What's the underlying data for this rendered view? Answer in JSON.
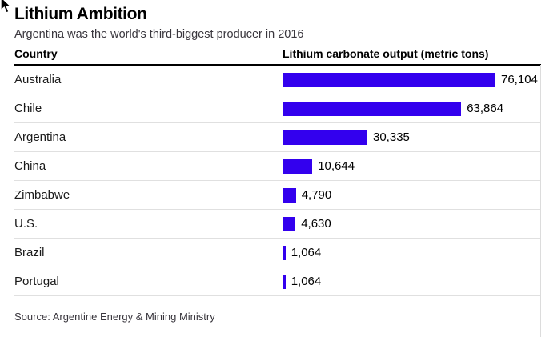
{
  "title": "Lithium Ambition",
  "subtitle": "Argentina was the world's third-biggest producer in 2016",
  "columns": {
    "country": "Country",
    "output": "Lithium carbonate output (metric tons)"
  },
  "source": "Source: Argentine Energy & Mining Ministry",
  "colors": {
    "bar": "#3300ee",
    "header_rule": "#000000",
    "separator": "#e0e0e0",
    "right_border": "#dcdcdc",
    "text": "#1a1a1a",
    "muted_text": "#39363d"
  },
  "chart_data": {
    "type": "bar",
    "orientation": "horizontal",
    "title": "Lithium Ambition",
    "subtitle": "Argentina was the world's third-biggest producer in 2016",
    "xlabel": "Lithium carbonate output (metric tons)",
    "ylabel": "Country",
    "xlim": [
      0,
      76104
    ],
    "grid": false,
    "legend": false,
    "categories": [
      "Australia",
      "Chile",
      "Argentina",
      "China",
      "Zimbabwe",
      "U.S.",
      "Brazil",
      "Portugal"
    ],
    "values": [
      76104,
      63864,
      30335,
      10644,
      4790,
      4630,
      1064,
      1064
    ],
    "value_labels": [
      "76,104",
      "63,864",
      "30,335",
      "10,644",
      "4,790",
      "4,630",
      "1,064",
      "1,064"
    ]
  }
}
